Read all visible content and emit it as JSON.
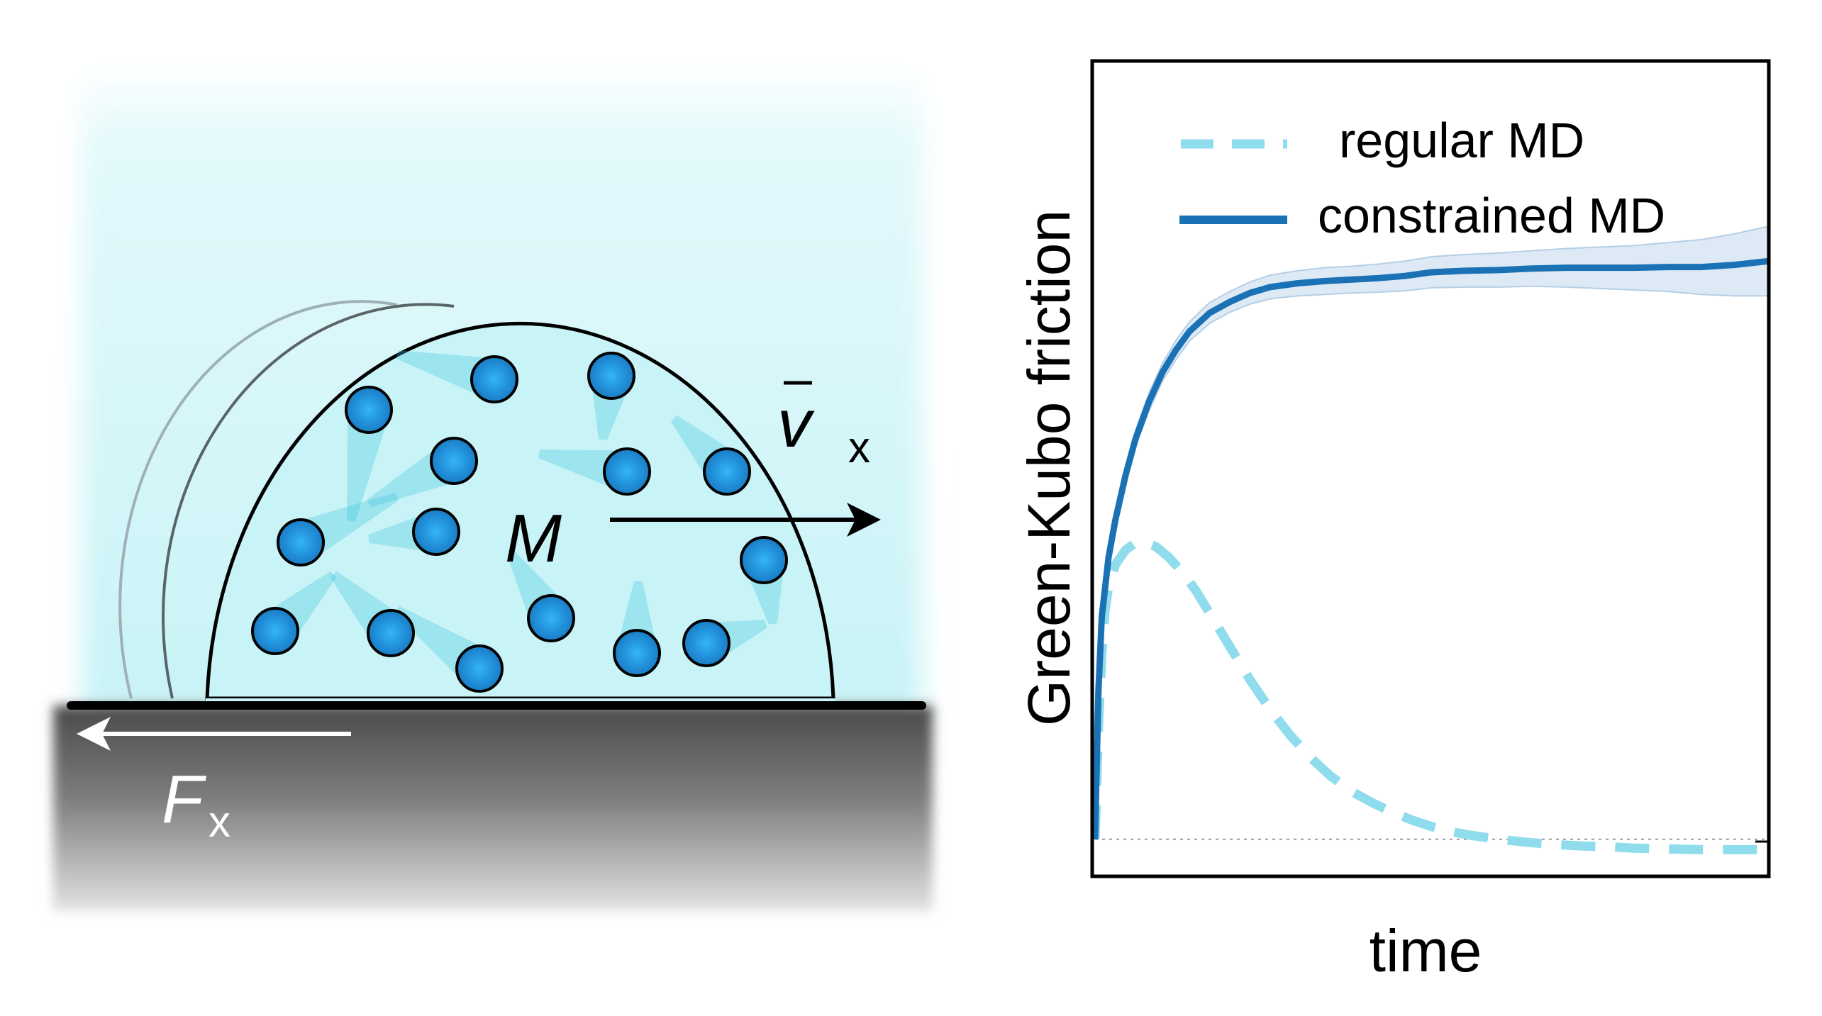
{
  "schematic": {
    "mass_label": "M",
    "velocity_symbol": "v",
    "velocity_subscript": "x",
    "force_symbol": "F",
    "force_subscript": "x",
    "colors": {
      "droplet_fill": "#c9f4f7",
      "glow": "#d9f8fb",
      "substrate_top": "#555555",
      "particle": "#1b8fd8"
    }
  },
  "chart_data": {
    "type": "line",
    "xlabel": "time",
    "ylabel": "Green-Kubo friction",
    "xlim": [
      0,
      1
    ],
    "ylim": [
      -0.05,
      1.05
    ],
    "grid": false,
    "ticks": false,
    "legend": {
      "position": "top-right"
    },
    "series": [
      {
        "name": "regular MD",
        "style": "dashed",
        "color": "#8fdcec",
        "x": [
          0,
          0.005,
          0.01,
          0.015,
          0.02,
          0.03,
          0.045,
          0.06,
          0.075,
          0.09,
          0.11,
          0.13,
          0.15,
          0.17,
          0.19,
          0.21,
          0.23,
          0.26,
          0.29,
          0.32,
          0.35,
          0.38,
          0.41,
          0.44,
          0.47,
          0.5,
          0.53,
          0.56,
          0.6,
          0.64,
          0.68,
          0.72,
          0.76,
          0.8,
          0.85,
          0.9,
          0.95,
          1.0
        ],
        "y": [
          0,
          0.15,
          0.25,
          0.31,
          0.34,
          0.37,
          0.39,
          0.4,
          0.4,
          0.395,
          0.38,
          0.36,
          0.335,
          0.305,
          0.275,
          0.245,
          0.215,
          0.175,
          0.14,
          0.11,
          0.085,
          0.065,
          0.05,
          0.037,
          0.026,
          0.017,
          0.01,
          0.005,
          0.0,
          -0.004,
          -0.007,
          -0.009,
          -0.01,
          -0.012,
          -0.013,
          -0.014,
          -0.014,
          -0.014
        ]
      },
      {
        "name": "constrained MD",
        "style": "solid",
        "color": "#1a72b5",
        "band_color": "#cfe0ef",
        "x": [
          0,
          0.005,
          0.01,
          0.02,
          0.03,
          0.045,
          0.06,
          0.08,
          0.1,
          0.12,
          0.14,
          0.17,
          0.2,
          0.23,
          0.26,
          0.3,
          0.34,
          0.38,
          0.42,
          0.46,
          0.5,
          0.55,
          0.6,
          0.65,
          0.7,
          0.75,
          0.8,
          0.85,
          0.9,
          0.95,
          1.0
        ],
        "y": [
          0,
          0.2,
          0.3,
          0.38,
          0.43,
          0.49,
          0.54,
          0.59,
          0.63,
          0.66,
          0.685,
          0.71,
          0.725,
          0.737,
          0.745,
          0.75,
          0.753,
          0.755,
          0.757,
          0.76,
          0.765,
          0.767,
          0.768,
          0.77,
          0.771,
          0.771,
          0.771,
          0.772,
          0.772,
          0.775,
          0.78
        ],
        "band_halfwidth": [
          0,
          0.005,
          0.008,
          0.01,
          0.01,
          0.011,
          0.011,
          0.012,
          0.012,
          0.013,
          0.013,
          0.014,
          0.014,
          0.015,
          0.016,
          0.017,
          0.018,
          0.018,
          0.019,
          0.02,
          0.021,
          0.022,
          0.023,
          0.024,
          0.026,
          0.028,
          0.03,
          0.033,
          0.037,
          0.042,
          0.047
        ]
      }
    ],
    "reference_line": {
      "y": 0,
      "style": "dotted",
      "color": "#9a9a9a"
    }
  }
}
